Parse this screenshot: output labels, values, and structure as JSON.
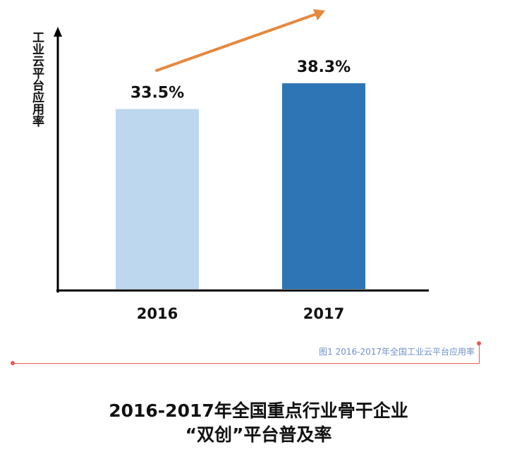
{
  "chart_data": {
    "type": "bar",
    "categories": [
      "2016",
      "2017"
    ],
    "values": [
      33.5,
      38.3
    ],
    "value_labels": [
      "33.5%",
      "38.3%"
    ],
    "ylabel": "工业云平台应用率",
    "colors": [
      "#bdd7ee",
      "#2e75b6"
    ],
    "trend_arrow_color": "#e6883e",
    "ylim": [
      0,
      45
    ],
    "grid": false
  },
  "caption": {
    "text": "图1 2016-2017年全国工业云平台应用率"
  },
  "footer": {
    "title_line1": "2016-2017年全国重点行业骨干企业",
    "title_line2": "“双创”平台普及率"
  }
}
